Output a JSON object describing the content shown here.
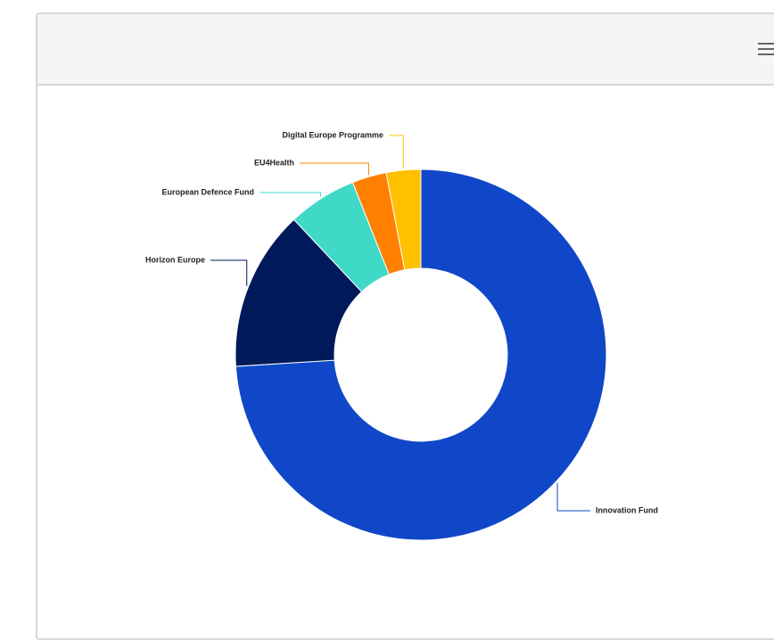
{
  "chart_data": {
    "type": "pie",
    "categories": [
      "Innovation Fund",
      "Horizon Europe",
      "European Defence Fund",
      "EU4Health",
      "Digital Europe Programme"
    ],
    "values": [
      74,
      14,
      6,
      3,
      3
    ],
    "colors": [
      "#0f47c8",
      "#00195a",
      "#40d9c8",
      "#ff8000",
      "#ffc000"
    ],
    "donut": true
  }
}
